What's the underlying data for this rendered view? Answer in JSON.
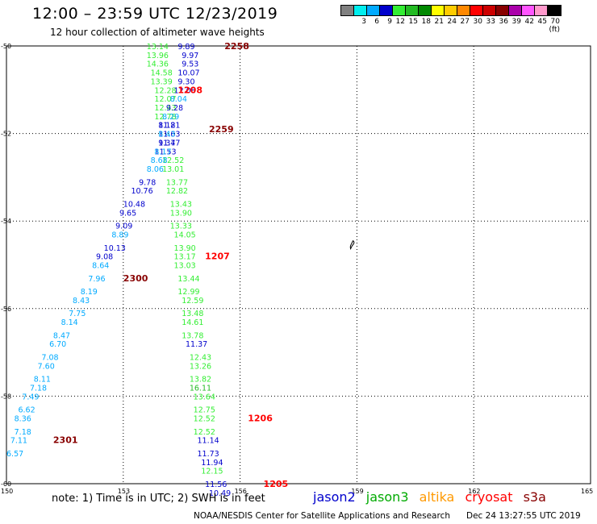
{
  "title": "12:00 – 23:59 UTC 12/23/2019",
  "subtitle": "12 hour collection of altimeter wave heights",
  "colors": {
    "jason2": "#0000cc",
    "jason3": "#00aa00",
    "altika": "#ff9900",
    "cryosat": "#ff0000",
    "s3a": "#880000"
  },
  "legend": {
    "colors": [
      "#808080",
      "#00eeee",
      "#00aaff",
      "#0000cc",
      "#33ee33",
      "#22bb22",
      "#008800",
      "#ffff00",
      "#ffcc00",
      "#ff8800",
      "#ff0000",
      "#cc0000",
      "#880000",
      "#aa00aa",
      "#ff55ff",
      "#ff99cc",
      "#000000"
    ],
    "labels": [
      "",
      "3",
      "6",
      "9",
      "12",
      "15",
      "18",
      "21",
      "24",
      "27",
      "30",
      "33",
      "36",
      "39",
      "42",
      "45",
      "70 (ft)"
    ]
  },
  "map": {
    "y_ticks": [
      "-50",
      "-52",
      "-54",
      "-56",
      "-58",
      "-60"
    ],
    "x_ticks": [
      "150",
      "153",
      "156",
      "159",
      "162",
      "165"
    ],
    "land_icon": "island-shape"
  },
  "chart_data": {
    "type": "scatter",
    "title": "12:00 – 23:59 UTC 12/23/2019",
    "xlim": [
      150,
      165
    ],
    "ylim": [
      -60,
      -50
    ],
    "grid": true,
    "points": [
      {
        "lon": 153.6,
        "lat": -50.0,
        "text": "13.14",
        "color": "#33ee33"
      },
      {
        "lon": 153.6,
        "lat": -50.2,
        "text": "13.96",
        "color": "#33ee33"
      },
      {
        "lon": 153.6,
        "lat": -50.4,
        "text": "14.36",
        "color": "#33ee33"
      },
      {
        "lon": 153.7,
        "lat": -50.6,
        "text": "14.58",
        "color": "#33ee33"
      },
      {
        "lon": 153.7,
        "lat": -50.8,
        "text": "13.39",
        "color": "#33ee33"
      },
      {
        "lon": 153.8,
        "lat": -51.0,
        "text": "12.28",
        "color": "#33ee33"
      },
      {
        "lon": 153.8,
        "lat": -51.2,
        "text": "12.07",
        "color": "#33ee33"
      },
      {
        "lon": 153.8,
        "lat": -51.4,
        "text": "12.43",
        "color": "#33ee33"
      },
      {
        "lon": 153.8,
        "lat": -51.6,
        "text": "12.78",
        "color": "#33ee33"
      },
      {
        "lon": 153.9,
        "lat": -51.8,
        "text": "11.81",
        "color": "#0000cc"
      },
      {
        "lon": 153.9,
        "lat": -52.0,
        "text": "11.63",
        "color": "#0000cc"
      },
      {
        "lon": 153.9,
        "lat": -52.2,
        "text": "11.47",
        "color": "#0000cc"
      },
      {
        "lon": 153.8,
        "lat": -52.4,
        "text": "11.53",
        "color": "#0000cc"
      },
      {
        "lon": 153.8,
        "lat": -52.4,
        "text": "8.17",
        "color": "#00aaff"
      },
      {
        "lon": 154.4,
        "lat": -50.0,
        "text": "9.89",
        "color": "#0000cc"
      },
      {
        "lon": 154.5,
        "lat": -50.2,
        "text": "9.97",
        "color": "#0000cc"
      },
      {
        "lon": 154.5,
        "lat": -50.4,
        "text": "9.53",
        "color": "#0000cc"
      },
      {
        "lon": 154.4,
        "lat": -50.6,
        "text": "10.07",
        "color": "#0000cc"
      },
      {
        "lon": 154.4,
        "lat": -50.8,
        "text": "9.30",
        "color": "#0000cc"
      },
      {
        "lon": 154.3,
        "lat": -51.0,
        "text": "12.08",
        "color": "#0000cc"
      },
      {
        "lon": 154.2,
        "lat": -51.2,
        "text": "8.04",
        "color": "#00aaff"
      },
      {
        "lon": 154.1,
        "lat": -51.4,
        "text": "9.28",
        "color": "#0000cc"
      },
      {
        "lon": 154.0,
        "lat": -51.6,
        "text": "8.29",
        "color": "#00aaff"
      },
      {
        "lon": 153.9,
        "lat": -51.8,
        "text": "8.12",
        "color": "#0000cc"
      },
      {
        "lon": 153.9,
        "lat": -52.0,
        "text": "8.43",
        "color": "#00aaff"
      },
      {
        "lon": 153.9,
        "lat": -52.2,
        "text": "9.37",
        "color": "#0000cc"
      },
      {
        "lon": 154.0,
        "lat": -52.6,
        "text": "12.52",
        "color": "#33ee33"
      },
      {
        "lon": 153.7,
        "lat": -52.6,
        "text": "8.68",
        "color": "#00aaff"
      },
      {
        "lon": 154.0,
        "lat": -52.8,
        "text": "13.01",
        "color": "#33ee33"
      },
      {
        "lon": 153.6,
        "lat": -52.8,
        "text": "8.06",
        "color": "#00aaff"
      },
      {
        "lon": 154.1,
        "lat": -53.1,
        "text": "13.77",
        "color": "#33ee33"
      },
      {
        "lon": 153.4,
        "lat": -53.1,
        "text": "9.78",
        "color": "#0000cc"
      },
      {
        "lon": 154.1,
        "lat": -53.3,
        "text": "12.82",
        "color": "#33ee33"
      },
      {
        "lon": 153.2,
        "lat": -53.3,
        "text": "10.76",
        "color": "#0000cc"
      },
      {
        "lon": 154.2,
        "lat": -53.6,
        "text": "13.43",
        "color": "#33ee33"
      },
      {
        "lon": 153.0,
        "lat": -53.6,
        "text": "10.48",
        "color": "#0000cc"
      },
      {
        "lon": 154.2,
        "lat": -53.8,
        "text": "13.90",
        "color": "#33ee33"
      },
      {
        "lon": 152.9,
        "lat": -53.8,
        "text": "9.65",
        "color": "#0000cc"
      },
      {
        "lon": 154.2,
        "lat": -54.1,
        "text": "13.33",
        "color": "#33ee33"
      },
      {
        "lon": 152.8,
        "lat": -54.1,
        "text": "9.09",
        "color": "#0000cc"
      },
      {
        "lon": 154.3,
        "lat": -54.3,
        "text": "14.05",
        "color": "#33ee33"
      },
      {
        "lon": 152.7,
        "lat": -54.3,
        "text": "8.89",
        "color": "#00aaff"
      },
      {
        "lon": 154.3,
        "lat": -54.6,
        "text": "13.90",
        "color": "#33ee33"
      },
      {
        "lon": 152.5,
        "lat": -54.6,
        "text": "10.13",
        "color": "#0000cc"
      },
      {
        "lon": 154.3,
        "lat": -54.8,
        "text": "13.17",
        "color": "#33ee33"
      },
      {
        "lon": 152.3,
        "lat": -54.8,
        "text": "9.08",
        "color": "#0000cc"
      },
      {
        "lon": 154.3,
        "lat": -55.0,
        "text": "13.03",
        "color": "#33ee33"
      },
      {
        "lon": 152.2,
        "lat": -55.0,
        "text": "8.64",
        "color": "#00aaff"
      },
      {
        "lon": 154.4,
        "lat": -55.3,
        "text": "13.44",
        "color": "#33ee33"
      },
      {
        "lon": 152.1,
        "lat": -55.3,
        "text": "7.96",
        "color": "#00aaff"
      },
      {
        "lon": 154.4,
        "lat": -55.6,
        "text": "12.99",
        "color": "#33ee33"
      },
      {
        "lon": 151.9,
        "lat": -55.6,
        "text": "8.19",
        "color": "#00aaff"
      },
      {
        "lon": 154.5,
        "lat": -55.8,
        "text": "12.59",
        "color": "#33ee33"
      },
      {
        "lon": 151.7,
        "lat": -55.8,
        "text": "8.43",
        "color": "#00aaff"
      },
      {
        "lon": 154.5,
        "lat": -56.1,
        "text": "13.48",
        "color": "#33ee33"
      },
      {
        "lon": 151.6,
        "lat": -56.1,
        "text": "7.75",
        "color": "#00aaff"
      },
      {
        "lon": 154.5,
        "lat": -56.3,
        "text": "14.61",
        "color": "#33ee33"
      },
      {
        "lon": 151.4,
        "lat": -56.3,
        "text": "8.14",
        "color": "#00aaff"
      },
      {
        "lon": 154.5,
        "lat": -56.6,
        "text": "13.78",
        "color": "#33ee33"
      },
      {
        "lon": 151.2,
        "lat": -56.6,
        "text": "8.47",
        "color": "#00aaff"
      },
      {
        "lon": 154.6,
        "lat": -56.8,
        "text": "11.37",
        "color": "#0000cc"
      },
      {
        "lon": 151.1,
        "lat": -56.8,
        "text": "6.70",
        "color": "#00aaff"
      },
      {
        "lon": 154.7,
        "lat": -57.1,
        "text": "12.43",
        "color": "#33ee33"
      },
      {
        "lon": 150.9,
        "lat": -57.1,
        "text": "7.08",
        "color": "#00aaff"
      },
      {
        "lon": 154.7,
        "lat": -57.3,
        "text": "13.26",
        "color": "#33ee33"
      },
      {
        "lon": 150.8,
        "lat": -57.3,
        "text": "7.60",
        "color": "#00aaff"
      },
      {
        "lon": 154.7,
        "lat": -57.6,
        "text": "13.82",
        "color": "#33ee33"
      },
      {
        "lon": 150.7,
        "lat": -57.6,
        "text": "8.11",
        "color": "#00aaff"
      },
      {
        "lon": 154.7,
        "lat": -57.8,
        "text": "16.11",
        "color": "#22bb22"
      },
      {
        "lon": 150.6,
        "lat": -57.8,
        "text": "7.18",
        "color": "#00aaff"
      },
      {
        "lon": 154.8,
        "lat": -58.0,
        "text": "13.64",
        "color": "#33ee33"
      },
      {
        "lon": 150.4,
        "lat": -58.0,
        "text": "7.49",
        "color": "#00aaff"
      },
      {
        "lon": 154.8,
        "lat": -58.3,
        "text": "12.75",
        "color": "#33ee33"
      },
      {
        "lon": 150.3,
        "lat": -58.3,
        "text": "6.62",
        "color": "#00aaff"
      },
      {
        "lon": 154.8,
        "lat": -58.5,
        "text": "12.52",
        "color": "#33ee33"
      },
      {
        "lon": 150.2,
        "lat": -58.5,
        "text": "8.36",
        "color": "#00aaff"
      },
      {
        "lon": 154.8,
        "lat": -58.8,
        "text": "12.52",
        "color": "#33ee33"
      },
      {
        "lon": 150.2,
        "lat": -58.8,
        "text": "7.18",
        "color": "#00aaff"
      },
      {
        "lon": 154.9,
        "lat": -59.0,
        "text": "11.14",
        "color": "#0000cc"
      },
      {
        "lon": 150.1,
        "lat": -59.0,
        "text": "7.11",
        "color": "#00aaff"
      },
      {
        "lon": 154.9,
        "lat": -59.3,
        "text": "11.73",
        "color": "#0000cc"
      },
      {
        "lon": 150.0,
        "lat": -59.3,
        "text": "6.57",
        "color": "#00aaff"
      },
      {
        "lon": 155.0,
        "lat": -59.5,
        "text": "11.94",
        "color": "#0000cc"
      },
      {
        "lon": 155.0,
        "lat": -59.7,
        "text": "12.15",
        "color": "#33ee33"
      },
      {
        "lon": 155.1,
        "lat": -60.0,
        "text": "11.56",
        "color": "#0000cc"
      },
      {
        "lon": 155.2,
        "lat": -60.2,
        "text": "10.49",
        "color": "#0000cc"
      }
    ],
    "time_labels": [
      {
        "lon": 155.6,
        "lat": -50.0,
        "text": "2258",
        "color": "#880000"
      },
      {
        "lon": 154.4,
        "lat": -51.0,
        "text": "1208",
        "color": "#ff0000"
      },
      {
        "lon": 155.2,
        "lat": -51.9,
        "text": "2259",
        "color": "#880000"
      },
      {
        "lon": 155.1,
        "lat": -54.8,
        "text": "1207",
        "color": "#ff0000"
      },
      {
        "lon": 153.0,
        "lat": -55.3,
        "text": "2300",
        "color": "#880000"
      },
      {
        "lon": 151.2,
        "lat": -59.0,
        "text": "2301",
        "color": "#880000"
      },
      {
        "lon": 156.2,
        "lat": -58.5,
        "text": "1206",
        "color": "#ff0000"
      },
      {
        "lon": 156.6,
        "lat": -60.0,
        "text": "1205",
        "color": "#ff0000"
      }
    ]
  },
  "footer": {
    "note": "note:  1) Time is in UTC;  2) SWH is in feet",
    "missions": [
      "jason2",
      "jason3",
      "altika",
      "cryosat",
      "s3a"
    ],
    "credit": "NOAA/NESDIS Center for Satellite Applications and Research",
    "timestamp": "Dec 24 13:27:55 UTC 2019"
  }
}
